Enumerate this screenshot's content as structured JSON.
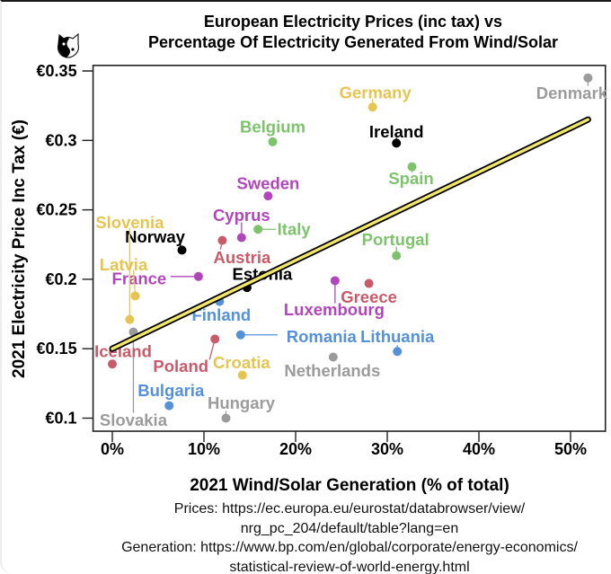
{
  "logo": {
    "icon": "yin-yang-cat-icon"
  },
  "chart_data": {
    "type": "scatter",
    "title": [
      "European Electricity Prices (inc tax) vs",
      "Percentage Of Electricity Generated From Wind/Solar"
    ],
    "xlabel": "2021 Wind/Solar Generation (% of total)",
    "ylabel": "2021 Electricity Price Inc Tax (€)",
    "xlim": [
      -2.1,
      53.8
    ],
    "ylim": [
      0.0906,
      0.354
    ],
    "xticks": [
      0,
      10,
      20,
      30,
      40,
      50
    ],
    "xtick_labels": [
      "0%",
      "10%",
      "20%",
      "30%",
      "40%",
      "50%"
    ],
    "yticks": [
      0.1,
      0.15,
      0.2,
      0.25,
      0.3,
      0.35
    ],
    "ytick_labels": [
      "€0.1",
      "€0.15",
      "€0.2",
      "€0.25",
      "€0.3",
      "€0.35"
    ],
    "grid": false,
    "legend": "none",
    "colors": {
      "yellow": "#E6C452",
      "green": "#7DC36B",
      "purple": "#B146BC",
      "red": "#C95A6A",
      "blue": "#5590DA",
      "gray": "#9B9B9B",
      "black": "#000000"
    },
    "points": [
      {
        "name": "Denmark",
        "x": 51.9,
        "y": 0.345,
        "color": "#9B9B9B"
      },
      {
        "name": "Germany",
        "x": 28.4,
        "y": 0.324,
        "color": "#E6C452"
      },
      {
        "name": "Ireland",
        "x": 31.0,
        "y": 0.298,
        "color": "#000000"
      },
      {
        "name": "Spain",
        "x": 32.7,
        "y": 0.281,
        "color": "#7DC36B"
      },
      {
        "name": "Portugal",
        "x": 31.0,
        "y": 0.217,
        "color": "#7DC36B"
      },
      {
        "name": "Belgium",
        "x": 17.5,
        "y": 0.299,
        "color": "#7DC36B"
      },
      {
        "name": "Sweden",
        "x": 17.0,
        "y": 0.26,
        "color": "#B146BC"
      },
      {
        "name": "Italy",
        "x": 15.9,
        "y": 0.236,
        "color": "#7DC36B"
      },
      {
        "name": "Cyprus",
        "x": 14.1,
        "y": 0.23,
        "color": "#B146BC"
      },
      {
        "name": "Austria",
        "x": 12.0,
        "y": 0.228,
        "color": "#C95A6A"
      },
      {
        "name": "Norway",
        "x": 7.6,
        "y": 0.221,
        "color": "#000000"
      },
      {
        "name": "France",
        "x": 9.4,
        "y": 0.202,
        "color": "#B146BC"
      },
      {
        "name": "Estonia",
        "x": 14.7,
        "y": 0.194,
        "color": "#000000"
      },
      {
        "name": "Latvia",
        "x": 2.5,
        "y": 0.188,
        "color": "#E6C452"
      },
      {
        "name": "Slovenia",
        "x": 1.9,
        "y": 0.171,
        "color": "#E6C452"
      },
      {
        "name": "Slovakia",
        "x": 2.3,
        "y": 0.162,
        "color": "#9B9B9B"
      },
      {
        "name": "Finland",
        "x": 11.7,
        "y": 0.184,
        "color": "#5590DA"
      },
      {
        "name": "Romania",
        "x": 14.0,
        "y": 0.16,
        "color": "#5590DA"
      },
      {
        "name": "Poland",
        "x": 11.2,
        "y": 0.157,
        "color": "#C95A6A"
      },
      {
        "name": "Iceland",
        "x": 0.0,
        "y": 0.139,
        "color": "#C95A6A"
      },
      {
        "name": "Croatia",
        "x": 14.2,
        "y": 0.131,
        "color": "#E6C452"
      },
      {
        "name": "Bulgaria",
        "x": 6.2,
        "y": 0.109,
        "color": "#5590DA"
      },
      {
        "name": "Hungary",
        "x": 12.4,
        "y": 0.1,
        "color": "#9B9B9B"
      },
      {
        "name": "Luxembourg",
        "x": 24.3,
        "y": 0.199,
        "color": "#B146BC"
      },
      {
        "name": "Greece",
        "x": 28.0,
        "y": 0.197,
        "color": "#C95A6A"
      },
      {
        "name": "Lithuania",
        "x": 31.1,
        "y": 0.148,
        "color": "#5590DA"
      },
      {
        "name": "Netherlands",
        "x": 24.1,
        "y": 0.144,
        "color": "#9B9B9B"
      }
    ],
    "trendline": {
      "x": [
        0,
        51.9
      ],
      "y": [
        0.15,
        0.315
      ],
      "color": "#F3E76A",
      "outline": "#000000"
    }
  },
  "sources": [
    "Prices: https://ec.europa.eu/eurostat/databrowser/view/",
    "nrg_pc_204/default/table?lang=en",
    "Generation: https://www.bp.com/en/global/corporate/energy-economics/",
    "statistical-review-of-world-energy.html"
  ]
}
